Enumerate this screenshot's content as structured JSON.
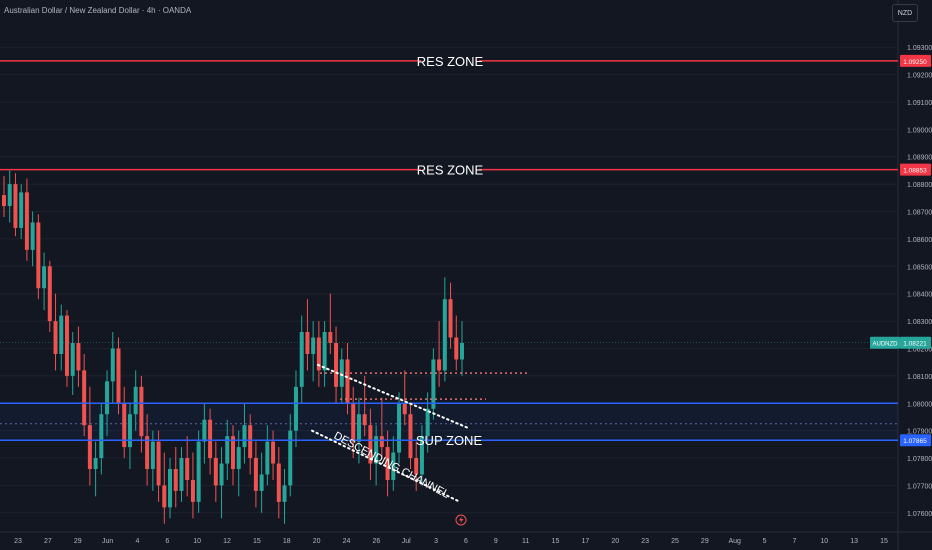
{
  "header": {
    "title": "Australian Dollar / New Zealand Dollar · 4h · OANDA",
    "currency": "NZD"
  },
  "colors": {
    "background": "#131722",
    "up": "#26a69a",
    "down": "#ef5350",
    "res_line": "#f23645",
    "sup_line": "#2962ff",
    "grid": "#1e222d",
    "axis_text": "#b2b5be"
  },
  "chart_data": {
    "type": "candlestick",
    "symbol_label": "AUDNZD",
    "last_price": "1.08221",
    "y_ticks": [
      "1.09300",
      "1.09200",
      "1.09100",
      "1.09000",
      "1.08900",
      "1.08800",
      "1.08700",
      "1.08600",
      "1.08500",
      "1.08400",
      "1.08300",
      "1.08200",
      "1.08100",
      "1.08000",
      "1.07900",
      "1.07800",
      "1.07700",
      "1.07600"
    ],
    "ylim": [
      1.0753,
      1.0937
    ],
    "x_ticks": [
      "23",
      "27",
      "29",
      "Jun",
      "4",
      "6",
      "10",
      "12",
      "15",
      "18",
      "20",
      "24",
      "26",
      "Jul",
      "3",
      "6",
      "9",
      "11",
      "15",
      "17",
      "20",
      "23",
      "25",
      "29",
      "Aug",
      "5",
      "7",
      "10",
      "13",
      "15"
    ],
    "annotations": [
      {
        "kind": "hline",
        "label": "RES ZONE",
        "price": 1.0925,
        "price_label": "1.09250",
        "color": "#f23645"
      },
      {
        "kind": "hline",
        "label": "RES ZONE",
        "price": 1.08853,
        "price_label": "1.08853",
        "color": "#f23645"
      },
      {
        "kind": "hline",
        "label": "SUP ZONE",
        "price": 1.07865,
        "price_label": "1.07865",
        "color": "#2962ff"
      },
      {
        "kind": "hline",
        "label": "",
        "price": 1.08,
        "color": "#2962ff"
      },
      {
        "kind": "channel",
        "label": "DESCENDING CHANNEL"
      }
    ],
    "candles": [
      [
        1.0876,
        1.0883,
        1.0868,
        1.0872
      ],
      [
        1.0872,
        1.0885,
        1.0866,
        1.088
      ],
      [
        1.088,
        1.0884,
        1.0861,
        1.0864
      ],
      [
        1.0864,
        1.088,
        1.086,
        1.0877
      ],
      [
        1.0877,
        1.0882,
        1.0852,
        1.0856
      ],
      [
        1.0856,
        1.087,
        1.085,
        1.0866
      ],
      [
        1.0866,
        1.0869,
        1.0838,
        1.0842
      ],
      [
        1.0842,
        1.0855,
        1.0834,
        1.085
      ],
      [
        1.085,
        1.0852,
        1.0826,
        1.083
      ],
      [
        1.083,
        1.084,
        1.0812,
        1.0818
      ],
      [
        1.0818,
        1.0836,
        1.0812,
        1.0832
      ],
      [
        1.0832,
        1.0834,
        1.0806,
        1.081
      ],
      [
        1.081,
        1.0826,
        1.0803,
        1.0822
      ],
      [
        1.0822,
        1.0828,
        1.0806,
        1.0812
      ],
      [
        1.0812,
        1.0818,
        1.0788,
        1.0792
      ],
      [
        1.0792,
        1.0806,
        1.077,
        1.0776
      ],
      [
        1.0776,
        1.0786,
        1.0766,
        1.078
      ],
      [
        1.078,
        1.08,
        1.0774,
        1.0796
      ],
      [
        1.0796,
        1.0812,
        1.0788,
        1.0808
      ],
      [
        1.0808,
        1.0826,
        1.08,
        1.082
      ],
      [
        1.082,
        1.0824,
        1.0796,
        1.08
      ],
      [
        1.08,
        1.0806,
        1.078,
        1.0784
      ],
      [
        1.0784,
        1.08,
        1.0776,
        1.0796
      ],
      [
        1.0796,
        1.0812,
        1.079,
        1.0806
      ],
      [
        1.0806,
        1.081,
        1.0782,
        1.0788
      ],
      [
        1.0788,
        1.0796,
        1.077,
        1.0776
      ],
      [
        1.0776,
        1.079,
        1.0768,
        1.0786
      ],
      [
        1.0786,
        1.079,
        1.0764,
        1.077
      ],
      [
        1.077,
        1.0782,
        1.0756,
        1.0762
      ],
      [
        1.0762,
        1.078,
        1.0758,
        1.0776
      ],
      [
        1.0776,
        1.0784,
        1.0762,
        1.0768
      ],
      [
        1.0768,
        1.0784,
        1.0764,
        1.078
      ],
      [
        1.078,
        1.0788,
        1.0766,
        1.0772
      ],
      [
        1.0772,
        1.0782,
        1.0758,
        1.0764
      ],
      [
        1.0764,
        1.079,
        1.076,
        1.0786
      ],
      [
        1.0786,
        1.08,
        1.0778,
        1.0794
      ],
      [
        1.0794,
        1.0798,
        1.0774,
        1.078
      ],
      [
        1.078,
        1.0786,
        1.0764,
        1.077
      ],
      [
        1.077,
        1.0784,
        1.0758,
        1.0778
      ],
      [
        1.0778,
        1.0794,
        1.0772,
        1.0788
      ],
      [
        1.0788,
        1.0792,
        1.077,
        1.0776
      ],
      [
        1.0776,
        1.079,
        1.0766,
        1.0784
      ],
      [
        1.0784,
        1.08,
        1.0778,
        1.0792
      ],
      [
        1.0792,
        1.0796,
        1.0774,
        1.078
      ],
      [
        1.078,
        1.0786,
        1.0762,
        1.0768
      ],
      [
        1.0768,
        1.0782,
        1.076,
        1.0774
      ],
      [
        1.0774,
        1.0792,
        1.077,
        1.0786
      ],
      [
        1.0786,
        1.079,
        1.0772,
        1.0778
      ],
      [
        1.0778,
        1.0784,
        1.0758,
        1.0764
      ],
      [
        1.0764,
        1.0776,
        1.0756,
        1.077
      ],
      [
        1.077,
        1.0796,
        1.0766,
        1.079
      ],
      [
        1.079,
        1.0812,
        1.0784,
        1.0806
      ],
      [
        1.0806,
        1.0832,
        1.08,
        1.0826
      ],
      [
        1.0826,
        1.0838,
        1.0812,
        1.0818
      ],
      [
        1.0818,
        1.083,
        1.0808,
        1.0824
      ],
      [
        1.0824,
        1.083,
        1.0806,
        1.0812
      ],
      [
        1.0812,
        1.083,
        1.0806,
        1.0826
      ],
      [
        1.0826,
        1.084,
        1.0818,
        1.0822
      ],
      [
        1.0822,
        1.0828,
        1.08,
        1.0806
      ],
      [
        1.0806,
        1.082,
        1.08,
        1.0816
      ],
      [
        1.0816,
        1.0822,
        1.0796,
        1.08
      ],
      [
        1.08,
        1.0806,
        1.078,
        1.0786
      ],
      [
        1.0786,
        1.0802,
        1.0778,
        1.0796
      ],
      [
        1.0796,
        1.081,
        1.0788,
        1.0792
      ],
      [
        1.0792,
        1.0798,
        1.0772,
        1.0778
      ],
      [
        1.0778,
        1.0792,
        1.077,
        1.0788
      ],
      [
        1.0788,
        1.0802,
        1.078,
        1.0784
      ],
      [
        1.0784,
        1.079,
        1.0766,
        1.0772
      ],
      [
        1.0772,
        1.0788,
        1.0768,
        1.0782
      ],
      [
        1.0782,
        1.0804,
        1.0778,
        1.08
      ],
      [
        1.08,
        1.0812,
        1.0792,
        1.0796
      ],
      [
        1.0796,
        1.08,
        1.0776,
        1.078
      ],
      [
        1.078,
        1.0786,
        1.0768,
        1.0774
      ],
      [
        1.0774,
        1.0792,
        1.077,
        1.0788
      ],
      [
        1.0788,
        1.0804,
        1.0782,
        1.0798
      ],
      [
        1.0798,
        1.082,
        1.0794,
        1.0816
      ],
      [
        1.0816,
        1.083,
        1.0806,
        1.0812
      ],
      [
        1.0812,
        1.0846,
        1.0808,
        1.0838
      ],
      [
        1.0838,
        1.0844,
        1.082,
        1.0824
      ],
      [
        1.0824,
        1.0832,
        1.0812,
        1.0816
      ],
      [
        1.0816,
        1.083,
        1.081,
        1.0822
      ]
    ]
  }
}
